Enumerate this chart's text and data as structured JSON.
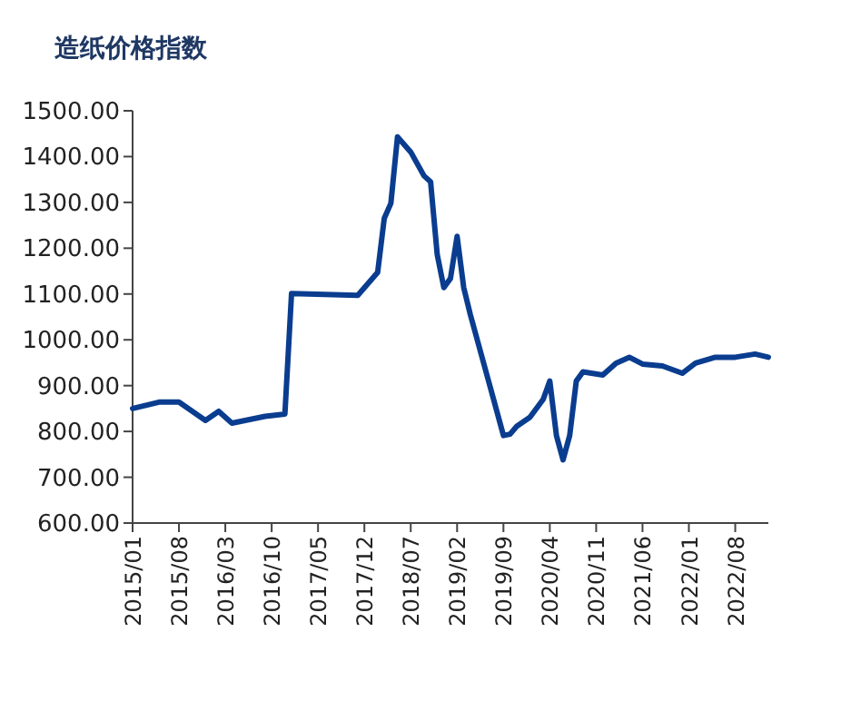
{
  "chart_data": {
    "type": "line",
    "title": "造纸价格指数",
    "x": [
      "2015-01",
      "2015-05",
      "2015-08",
      "2015-12",
      "2016-02",
      "2016-04",
      "2016-09",
      "2016-12",
      "2017-01",
      "2017-11",
      "2018-02",
      "2018-03",
      "2018-04",
      "2018-05",
      "2018-07",
      "2018-09",
      "2018-10",
      "2018-11",
      "2018-12",
      "2019-01",
      "2019-02",
      "2019-03",
      "2019-04",
      "2019-07",
      "2019-09",
      "2019-10",
      "2019-11",
      "2020-01",
      "2020-03",
      "2020-04",
      "2020-05",
      "2020-06",
      "2020-07",
      "2020-08",
      "2020-09",
      "2020-12",
      "2021-02",
      "2021-04",
      "2021-06",
      "2021-09",
      "2021-12",
      "2022-02",
      "2022-05",
      "2022-08",
      "2022-11",
      "2023-01"
    ],
    "series": [
      {
        "color": "#0a3d8f",
        "values": [
          850,
          864,
          864,
          824,
          844,
          818,
          833,
          838,
          1101,
          1097,
          1147,
          1265,
          1298,
          1443,
          1410,
          1358,
          1345,
          1186,
          1114,
          1134,
          1226,
          1114,
          1055,
          897,
          791,
          794,
          811,
          831,
          870,
          910,
          791,
          738,
          791,
          910,
          930,
          923,
          949,
          962,
          947,
          943,
          927,
          949,
          962,
          962,
          969,
          962
        ]
      }
    ],
    "xlim": [
      "2015-01",
      "2023-01"
    ],
    "xticks": [
      {
        "value": "2015-01",
        "label": "2015/01"
      },
      {
        "value": "2015-08",
        "label": "2015/08"
      },
      {
        "value": "2016-03",
        "label": "2016/03"
      },
      {
        "value": "2016-10",
        "label": "2016/10"
      },
      {
        "value": "2017-05",
        "label": "2017/05"
      },
      {
        "value": "2017-12",
        "label": "2017/12"
      },
      {
        "value": "2018-07",
        "label": "2018/07"
      },
      {
        "value": "2019-02",
        "label": "2019/02"
      },
      {
        "value": "2019-09",
        "label": "2019/09"
      },
      {
        "value": "2020-04",
        "label": "2020/04"
      },
      {
        "value": "2020-11",
        "label": "2020/11"
      },
      {
        "value": "2021-06",
        "label": "2021/06"
      },
      {
        "value": "2022-01",
        "label": "2022/01"
      },
      {
        "value": "2022-08",
        "label": "2022/08"
      }
    ],
    "ylim": [
      600,
      1500
    ],
    "yticks": [
      {
        "value": 600,
        "label": "600.00"
      },
      {
        "value": 700,
        "label": "700.00"
      },
      {
        "value": 800,
        "label": "800.00"
      },
      {
        "value": 900,
        "label": "900.00"
      },
      {
        "value": 1000,
        "label": "1000.00"
      },
      {
        "value": 1100,
        "label": "1100.00"
      },
      {
        "value": 1200,
        "label": "1200.00"
      },
      {
        "value": 1300,
        "label": "1300.00"
      },
      {
        "value": 1400,
        "label": "1400.00"
      },
      {
        "value": 1500,
        "label": "1500.00"
      }
    ],
    "grid": false,
    "marker": "none",
    "line_style": "solid"
  }
}
